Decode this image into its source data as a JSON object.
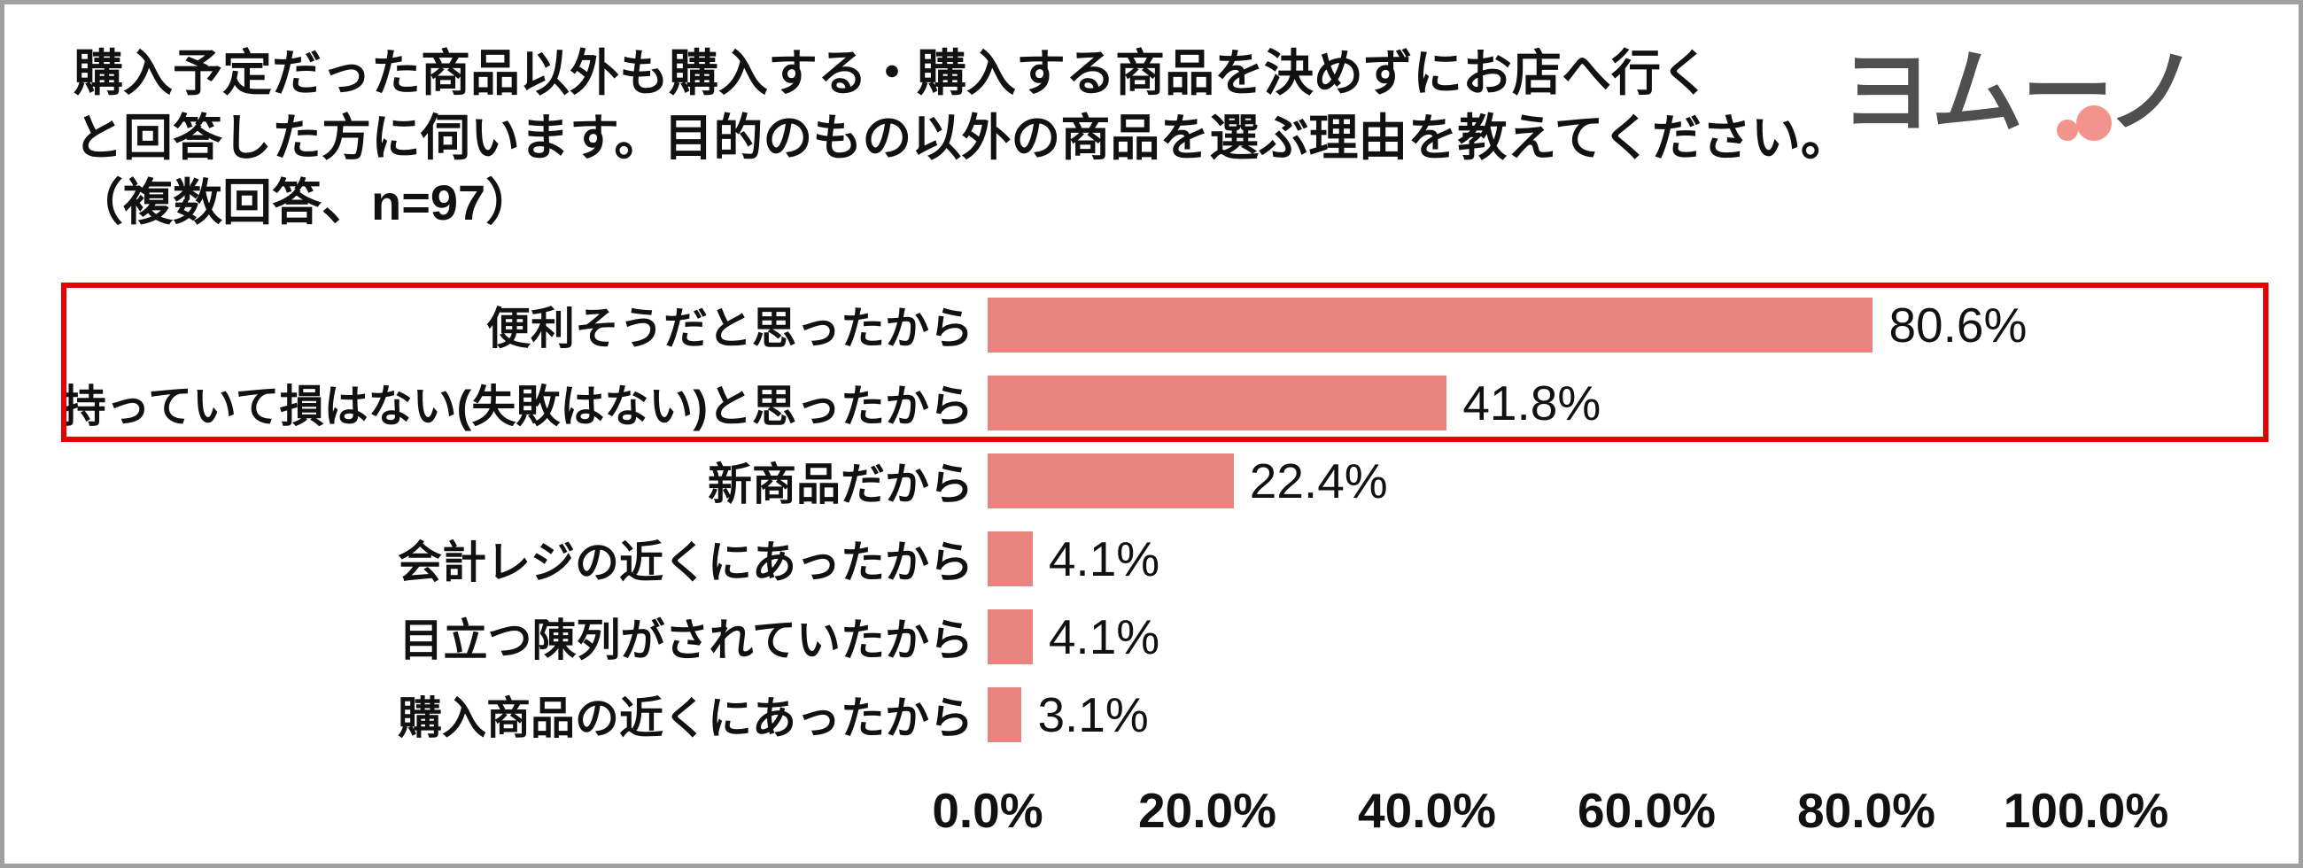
{
  "title": {
    "line1": "購入予定だった商品以外も購入する・購入する商品を決めずにお店へ行く",
    "line2": "と回答した方に伺います。目的のもの以外の商品を選ぶ理由を教えてください。",
    "line3": "（複数回答、n=97）"
  },
  "logo": {
    "text": "ヨムーノ"
  },
  "colors": {
    "bar": "#e8837e",
    "highlight_border": "#e60000",
    "frame_border": "#a0a0a0",
    "logo_text": "#4f4f4f",
    "logo_accent": "#f2938c"
  },
  "chart_data": {
    "type": "bar",
    "orientation": "horizontal",
    "title": "購入予定だった商品以外も購入する・購入する商品を決めずにお店へ行くと回答した方に伺います。目的のもの以外の商品を選ぶ理由を教えてください。（複数回答、n=97）",
    "categories": [
      "便利そうだと思ったから",
      "持っていて損はない(失敗はない)と思ったから",
      "新商品だから",
      "会計レジの近くにあったから",
      "目立つ陳列がされていたから",
      "購入商品の近くにあったから"
    ],
    "values": [
      80.6,
      41.8,
      22.4,
      4.1,
      4.1,
      3.1
    ],
    "value_labels": [
      "80.6%",
      "41.8%",
      "22.4%",
      "4.1%",
      "4.1%",
      "3.1%"
    ],
    "x_ticks": [
      "0.0%",
      "20.0%",
      "40.0%",
      "60.0%",
      "80.0%",
      "100.0%"
    ],
    "xlim": [
      0,
      100
    ],
    "highlighted_rows": [
      0,
      1
    ],
    "grid": false,
    "legend": false
  }
}
